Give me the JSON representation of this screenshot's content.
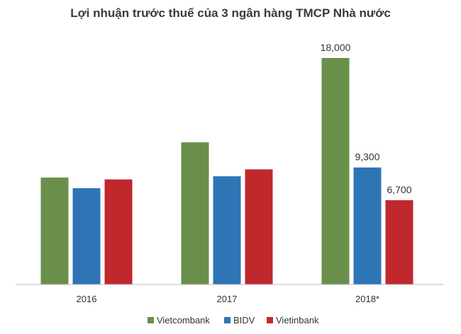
{
  "chart_data": {
    "type": "bar",
    "title": "Lợi nhuận trước thuế của 3 ngân hàng TMCP Nhà nước",
    "xlabel": "",
    "ylabel": "",
    "categories": [
      "2016",
      "2017",
      "2018*"
    ],
    "series": [
      {
        "name": "Vietcombank",
        "color": "#6a8f4b",
        "values": [
          8500,
          11300,
          18000
        ],
        "labels": [
          "",
          "",
          "18,000"
        ]
      },
      {
        "name": "BIDV",
        "color": "#2e75b6",
        "values": [
          7650,
          8600,
          9300
        ],
        "labels": [
          "",
          "",
          "9,300"
        ]
      },
      {
        "name": "Vietinbank",
        "color": "#c0282d",
        "values": [
          8350,
          9150,
          6700
        ],
        "labels": [
          "",
          "",
          "6,700"
        ]
      }
    ],
    "ylim": [
      0,
      19000
    ],
    "grid": false,
    "legend": "bottom"
  }
}
